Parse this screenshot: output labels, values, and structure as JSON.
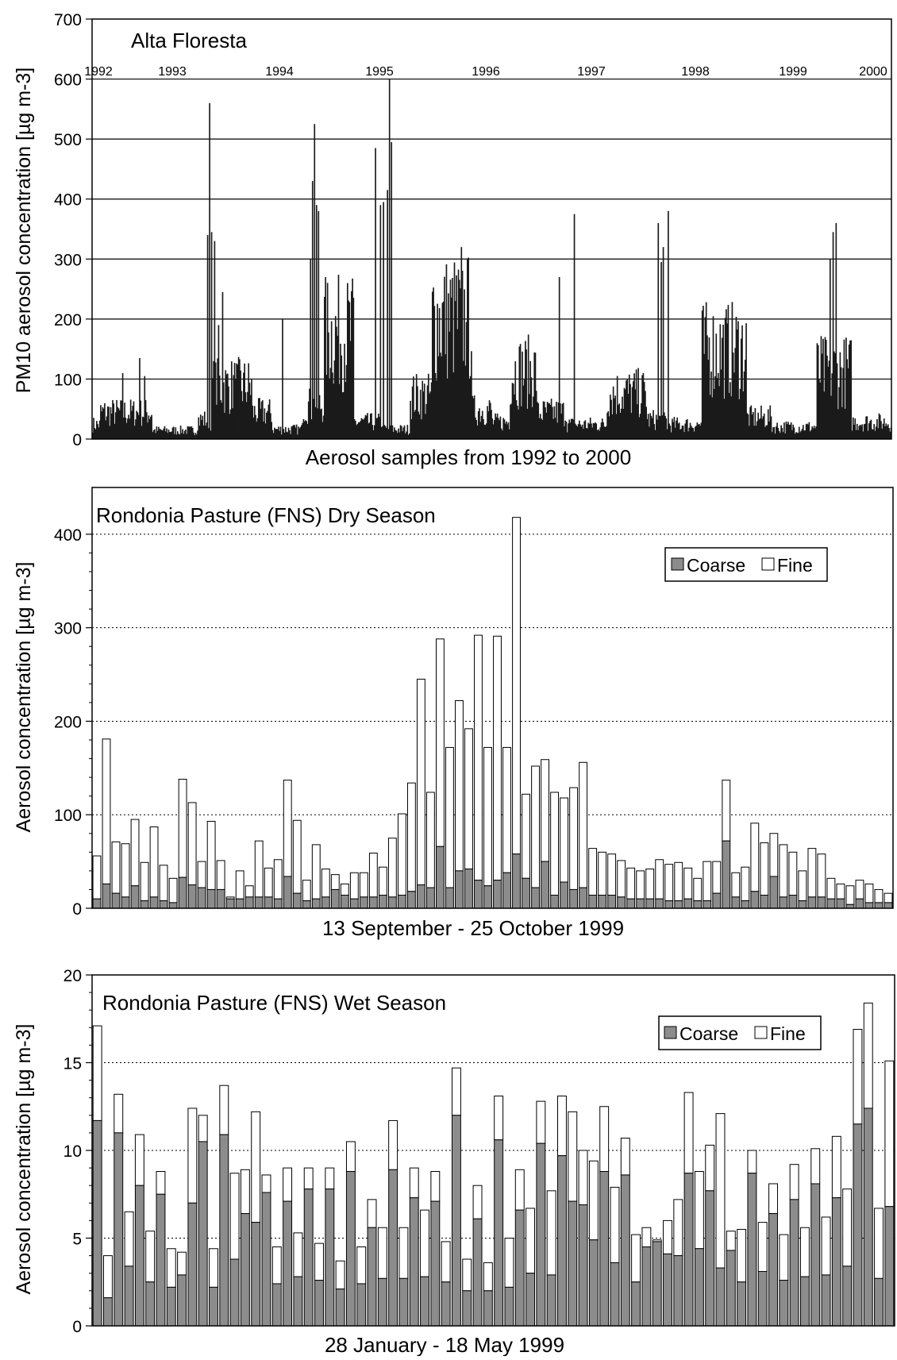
{
  "chart_data": [
    {
      "type": "bar",
      "title": "Alta Floresta",
      "xlabel": "Aerosol samples from 1992 to 2000",
      "ylabel": "PM10 aerosol concentration [µg m-3]",
      "ylim": [
        0,
        700
      ],
      "yticks": [
        0,
        100,
        200,
        300,
        400,
        500,
        600,
        700
      ],
      "grid": true,
      "year_labels": [
        "1992",
        "1993",
        "1994",
        "1995",
        "1996",
        "1997",
        "1998",
        "1999",
        "2000"
      ],
      "n_samples": 800,
      "background": [
        {
          "start": 0,
          "end": 8,
          "level": 30
        },
        {
          "start": 8,
          "end": 60,
          "level": 55
        },
        {
          "start": 60,
          "end": 105,
          "level": 18
        },
        {
          "start": 105,
          "end": 120,
          "level": 40
        },
        {
          "start": 120,
          "end": 160,
          "level": 110
        },
        {
          "start": 160,
          "end": 180,
          "level": 55
        },
        {
          "start": 180,
          "end": 210,
          "level": 20
        },
        {
          "start": 210,
          "end": 232,
          "level": 70
        },
        {
          "start": 232,
          "end": 262,
          "level": 220
        },
        {
          "start": 262,
          "end": 290,
          "level": 35
        },
        {
          "start": 290,
          "end": 318,
          "level": 20
        },
        {
          "start": 318,
          "end": 340,
          "level": 90
        },
        {
          "start": 340,
          "end": 330,
          "level": 0
        },
        {
          "start": 340,
          "end": 380,
          "level": 250
        },
        {
          "start": 380,
          "end": 400,
          "level": 60
        },
        {
          "start": 400,
          "end": 418,
          "level": 35
        },
        {
          "start": 418,
          "end": 445,
          "level": 140
        },
        {
          "start": 445,
          "end": 475,
          "level": 55
        },
        {
          "start": 475,
          "end": 515,
          "level": 30
        },
        {
          "start": 515,
          "end": 555,
          "level": 95
        },
        {
          "start": 555,
          "end": 575,
          "level": 40
        },
        {
          "start": 575,
          "end": 610,
          "level": 30
        },
        {
          "start": 610,
          "end": 655,
          "level": 185
        },
        {
          "start": 655,
          "end": 680,
          "level": 45
        },
        {
          "start": 680,
          "end": 725,
          "level": 25
        },
        {
          "start": 725,
          "end": 760,
          "level": 140
        },
        {
          "start": 760,
          "end": 800,
          "level": 35
        }
      ],
      "peaks": [
        {
          "i": 115,
          "v": 340
        },
        {
          "i": 117,
          "v": 560
        },
        {
          "i": 119,
          "v": 345
        },
        {
          "i": 122,
          "v": 330
        },
        {
          "i": 126,
          "v": 190
        },
        {
          "i": 130,
          "v": 245
        },
        {
          "i": 143,
          "v": 100
        },
        {
          "i": 190,
          "v": 200
        },
        {
          "i": 218,
          "v": 300
        },
        {
          "i": 220,
          "v": 430
        },
        {
          "i": 222,
          "v": 525
        },
        {
          "i": 224,
          "v": 390
        },
        {
          "i": 226,
          "v": 380
        },
        {
          "i": 283,
          "v": 485
        },
        {
          "i": 288,
          "v": 390
        },
        {
          "i": 291,
          "v": 395
        },
        {
          "i": 295,
          "v": 415
        },
        {
          "i": 297,
          "v": 600
        },
        {
          "i": 299,
          "v": 495
        },
        {
          "i": 363,
          "v": 230
        },
        {
          "i": 369,
          "v": 320
        },
        {
          "i": 374,
          "v": 195
        },
        {
          "i": 467,
          "v": 270
        },
        {
          "i": 482,
          "v": 375
        },
        {
          "i": 566,
          "v": 360
        },
        {
          "i": 569,
          "v": 295
        },
        {
          "i": 571,
          "v": 320
        },
        {
          "i": 576,
          "v": 380
        },
        {
          "i": 738,
          "v": 300
        },
        {
          "i": 741,
          "v": 345
        },
        {
          "i": 744,
          "v": 360
        },
        {
          "i": 47,
          "v": 135
        },
        {
          "i": 30,
          "v": 110
        },
        {
          "i": 52,
          "v": 105
        }
      ]
    },
    {
      "type": "bar",
      "stacked": true,
      "title": "Rondonia Pasture (FNS) Dry Season",
      "xlabel": "13 September  - 25 October 1999",
      "ylabel": "Aerosol concentration [µg m-3]",
      "ylim": [
        0,
        450
      ],
      "yticks": [
        0,
        100,
        200,
        300,
        400
      ],
      "grid": "dotted",
      "legend": {
        "position": "top-right",
        "labels": [
          "Coarse",
          "Fine"
        ]
      },
      "series": [
        {
          "name": "Coarse",
          "values": [
            10,
            26,
            16,
            12,
            24,
            8,
            12,
            8,
            6,
            33,
            25,
            22,
            20,
            20,
            10,
            10,
            12,
            12,
            12,
            10,
            34,
            16,
            8,
            10,
            12,
            20,
            14,
            10,
            12,
            12,
            14,
            12,
            14,
            18,
            25,
            22,
            66,
            22,
            40,
            42,
            30,
            24,
            30,
            38,
            58,
            32,
            22,
            50,
            14,
            28,
            20,
            22,
            14,
            14,
            14,
            12,
            10,
            10,
            10,
            10,
            8,
            8,
            10,
            8,
            8,
            16,
            72,
            12,
            8,
            18,
            14,
            34,
            12,
            14,
            8,
            12,
            12,
            10,
            10,
            4,
            10,
            6,
            6,
            6
          ]
        },
        {
          "name": "Fine",
          "values": [
            46,
            155,
            55,
            57,
            71,
            41,
            75,
            38,
            26,
            105,
            88,
            28,
            73,
            31,
            2,
            30,
            12,
            60,
            31,
            42,
            103,
            78,
            22,
            58,
            30,
            16,
            12,
            28,
            26,
            47,
            30,
            63,
            87,
            116,
            220,
            102,
            222,
            150,
            182,
            150,
            262,
            148,
            261,
            134,
            360,
            90,
            130,
            109,
            110,
            90,
            109,
            134,
            50,
            46,
            44,
            39,
            33,
            30,
            32,
            42,
            39,
            41,
            33,
            24,
            42,
            34,
            65,
            26,
            36,
            73,
            56,
            46,
            56,
            46,
            32,
            52,
            46,
            22,
            16,
            20,
            20,
            20,
            14,
            10
          ]
        }
      ]
    },
    {
      "type": "bar",
      "stacked": true,
      "title": "Rondonia Pasture (FNS) Wet Season",
      "xlabel": "28 January - 18 May 1999",
      "ylabel": "Aerosol concentration [µg m-3]",
      "ylim": [
        0,
        20
      ],
      "yticks": [
        0,
        5,
        10,
        15,
        20
      ],
      "grid": "dotted",
      "legend": {
        "position": "top-right",
        "labels": [
          "Coarse",
          "Fine"
        ]
      },
      "series": [
        {
          "name": "Coarse",
          "values": [
            11.7,
            1.6,
            11.0,
            3.4,
            8.0,
            2.5,
            7.5,
            2.2,
            2.9,
            7.0,
            10.5,
            2.2,
            10.9,
            3.8,
            6.4,
            5.9,
            7.6,
            2.4,
            7.1,
            2.8,
            7.8,
            2.6,
            7.8,
            2.1,
            8.8,
            2.4,
            5.6,
            2.7,
            8.9,
            2.7,
            7.3,
            2.8,
            7.1,
            2.5,
            12.0,
            2.0,
            6.1,
            2.0,
            10.6,
            2.2,
            6.6,
            3.0,
            10.4,
            2.9,
            9.7,
            7.1,
            6.9,
            4.9,
            8.8,
            3.6,
            8.6,
            2.5,
            4.5,
            4.8,
            4.1,
            4.0,
            8.7,
            4.4,
            7.7,
            3.3,
            4.3,
            2.5,
            8.7,
            3.1,
            6.4,
            2.6,
            7.2,
            2.8,
            8.1,
            2.9,
            7.3,
            3.4,
            11.5,
            12.4,
            2.7,
            6.8
          ]
        },
        {
          "name": "Fine",
          "values": [
            5.4,
            2.4,
            2.2,
            3.1,
            2.9,
            2.9,
            1.3,
            2.2,
            1.3,
            5.4,
            1.5,
            2.2,
            2.8,
            4.9,
            2.5,
            6.3,
            1.0,
            2.1,
            1.9,
            2.5,
            1.2,
            2.1,
            1.2,
            1.6,
            1.7,
            2.1,
            1.6,
            2.9,
            2.8,
            2.9,
            1.7,
            3.8,
            1.7,
            2.3,
            2.7,
            1.8,
            1.9,
            1.6,
            2.5,
            2.8,
            2.3,
            3.7,
            2.4,
            4.8,
            3.4,
            5.1,
            3.1,
            4.5,
            3.7,
            4.3,
            2.1,
            2.7,
            1.1,
            0.1,
            1.9,
            3.2,
            4.6,
            4.4,
            2.6,
            8.8,
            1.1,
            3.0,
            1.3,
            2.8,
            1.7,
            2.6,
            2.0,
            2.8,
            2.0,
            3.3,
            3.5,
            4.4,
            5.4,
            6.0,
            4.0,
            8.3
          ]
        }
      ]
    }
  ]
}
